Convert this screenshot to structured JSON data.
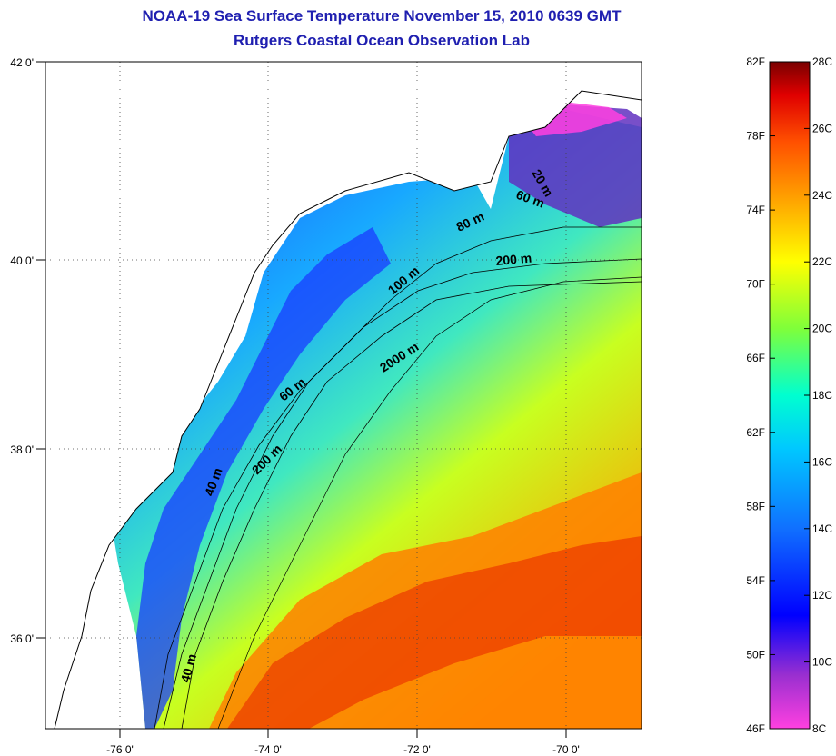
{
  "header": {
    "title": "NOAA-19 Sea Surface Temperature November 15, 2010 0639 GMT",
    "subtitle": "Rutgers Coastal Ocean Observation Lab"
  },
  "axes": {
    "x_ticks": [
      "-76 0'",
      "-74 0'",
      "-72 0'",
      "-70 0'"
    ],
    "y_ticks": [
      "42 0'",
      "40 0'",
      "38 0'",
      "36 0'"
    ]
  },
  "contours": [
    "20 m",
    "60 m",
    "80 m",
    "200 m",
    "100 m",
    "60 m",
    "2000 m",
    "200 m",
    "40 m",
    "40 m"
  ],
  "colorbar": {
    "fahrenheit": [
      "82F",
      "78F",
      "74F",
      "70F",
      "66F",
      "62F",
      "58F",
      "54F",
      "50F",
      "46F"
    ],
    "celsius": [
      "28C",
      "26C",
      "24C",
      "22C",
      "20C",
      "18C",
      "16C",
      "14C",
      "12C",
      "10C",
      "8C"
    ],
    "colors": [
      "#8b0000",
      "#e00000",
      "#ff6a00",
      "#ffae00",
      "#ffff00",
      "#7fff3a",
      "#00ffd0",
      "#18a8ff",
      "#1020ff",
      "#0000ff",
      "#9a2fd0",
      "#ff33dd"
    ]
  }
}
